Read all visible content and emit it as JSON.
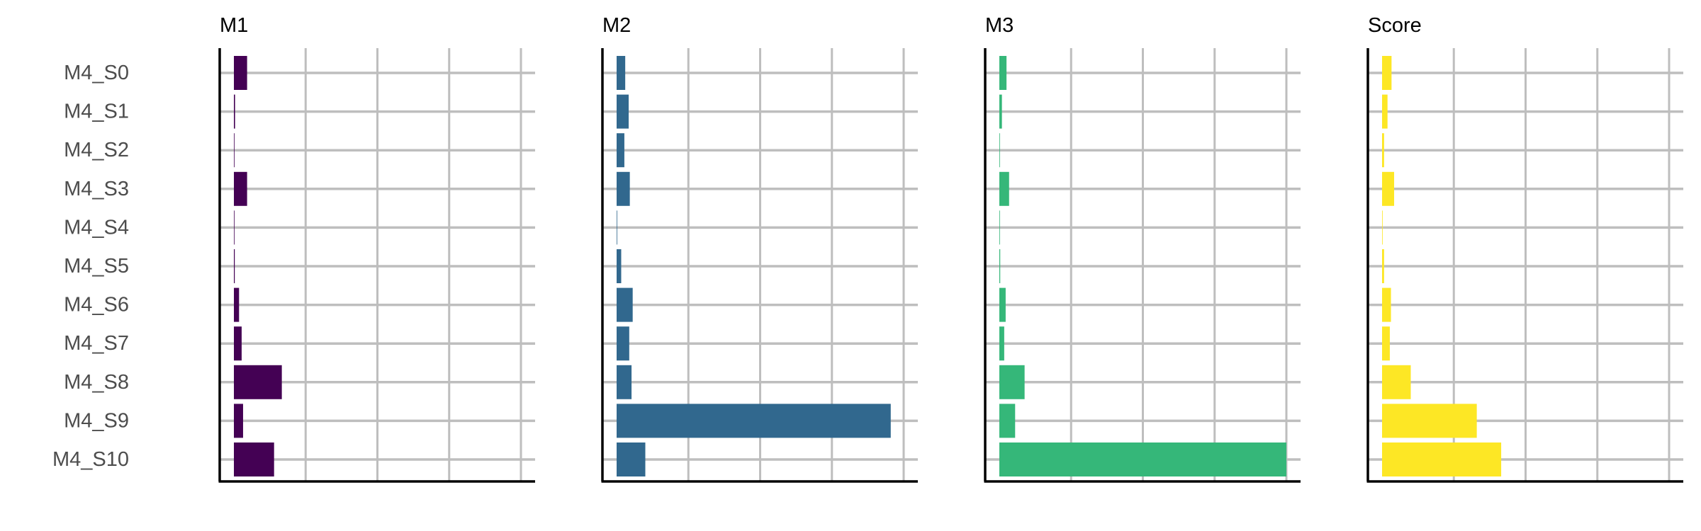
{
  "chart_data": {
    "type": "bar",
    "orientation": "horizontal",
    "layout": "small-multiples",
    "categories": [
      "M4_S0",
      "M4_S1",
      "M4_S2",
      "M4_S3",
      "M4_S4",
      "M4_S5",
      "M4_S6",
      "M4_S7",
      "M4_S8",
      "M4_S9",
      "M4_S10"
    ],
    "grid": true,
    "panels": [
      {
        "title": "M1",
        "color": "#440154",
        "xlim": [
          0,
          1.05
        ],
        "values": [
          0.046,
          0.004,
          0.002,
          0.046,
          0.001,
          0.003,
          0.018,
          0.027,
          0.167,
          0.032,
          0.14
        ]
      },
      {
        "title": "M2",
        "color": "#31688E",
        "xlim": [
          0,
          1.05
        ],
        "values": [
          0.03,
          0.042,
          0.027,
          0.046,
          0.002,
          0.016,
          0.056,
          0.044,
          0.052,
          0.955,
          0.1
        ]
      },
      {
        "title": "M3",
        "color": "#35B779",
        "xlim": [
          0,
          1.05
        ],
        "values": [
          0.025,
          0.009,
          0.002,
          0.034,
          0.001,
          0.003,
          0.022,
          0.017,
          0.088,
          0.055,
          1.0
        ]
      },
      {
        "title": "Score",
        "color": "#FDE725",
        "xlim": [
          0,
          1.05
        ],
        "values": [
          0.033,
          0.019,
          0.007,
          0.042,
          0.002,
          0.007,
          0.031,
          0.027,
          0.1,
          0.33,
          0.415
        ]
      }
    ]
  }
}
